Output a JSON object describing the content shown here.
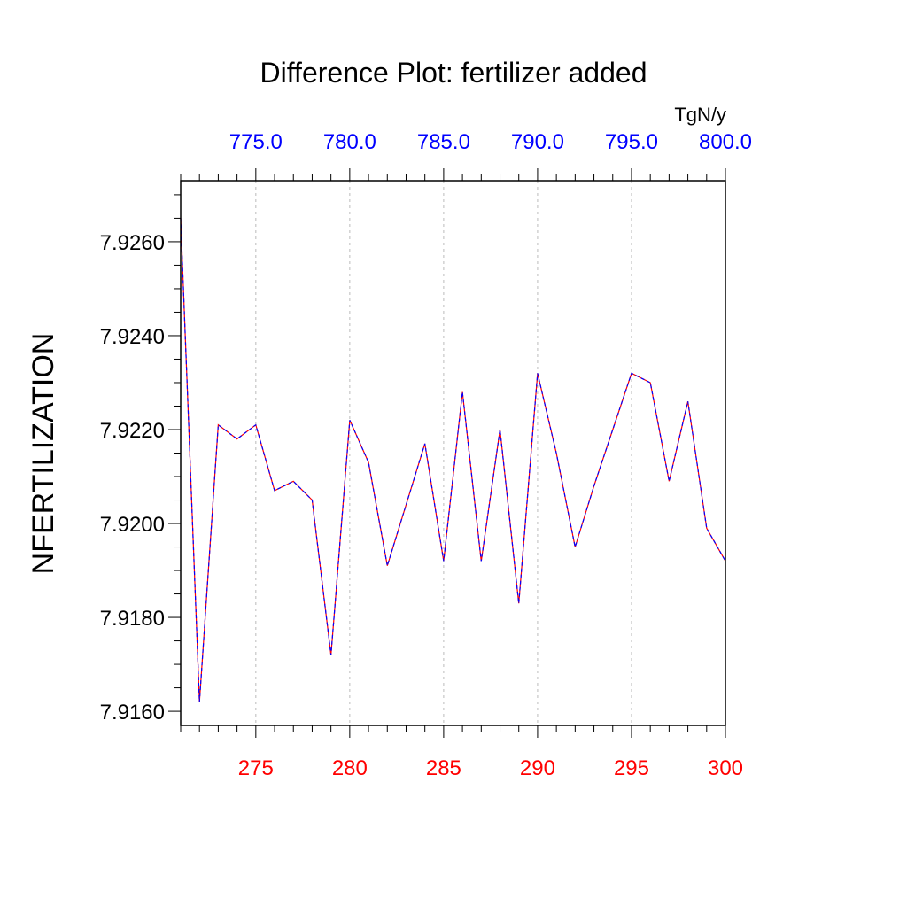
{
  "chart_data": {
    "type": "line",
    "title": "Difference Plot: fertilizer added",
    "ylabel": "NFERTILIZATION",
    "top_axis_units": "TgN/y",
    "xlim": [
      271,
      300
    ],
    "ylim": [
      7.9157,
      7.9273
    ],
    "x_ticks": [
      275,
      280,
      285,
      290,
      295,
      300
    ],
    "x_tick_labels": [
      "275",
      "280",
      "285",
      "290",
      "295",
      "300"
    ],
    "top_ticks": [
      275,
      280,
      285,
      290,
      295,
      300
    ],
    "top_tick_labels": [
      "775.0",
      "780.0",
      "785.0",
      "790.0",
      "795.0",
      "800.0"
    ],
    "y_ticks": [
      7.916,
      7.918,
      7.92,
      7.922,
      7.924,
      7.926
    ],
    "y_tick_labels": [
      "7.9160",
      "7.9180",
      "7.9200",
      "7.9220",
      "7.9240",
      "7.9260"
    ],
    "grid": "vertical dotted at major x ticks",
    "colors": {
      "bottom_axis": "#ff0000",
      "top_axis": "#0000ff",
      "line_a": "#ff0000",
      "line_b": "#0000ff",
      "grid": "#bbbbbb"
    },
    "x": [
      271,
      272,
      273,
      274,
      275,
      276,
      277,
      278,
      279,
      280,
      281,
      282,
      283,
      284,
      285,
      286,
      287,
      288,
      289,
      290,
      291,
      292,
      293,
      294,
      295,
      296,
      297,
      298,
      299,
      300
    ],
    "series": [
      {
        "values": [
          7.9265,
          7.9162,
          7.9221,
          7.9218,
          7.9221,
          7.9207,
          7.9209,
          7.9205,
          7.9172,
          7.9222,
          7.9213,
          7.9191,
          7.9204,
          7.9217,
          7.9192,
          7.9228,
          7.9192,
          7.922,
          7.9183,
          7.9232,
          7.9215,
          7.9195,
          7.9208,
          7.922,
          7.9232,
          7.923,
          7.9209,
          7.9226,
          7.9199,
          7.9192
        ]
      }
    ]
  }
}
